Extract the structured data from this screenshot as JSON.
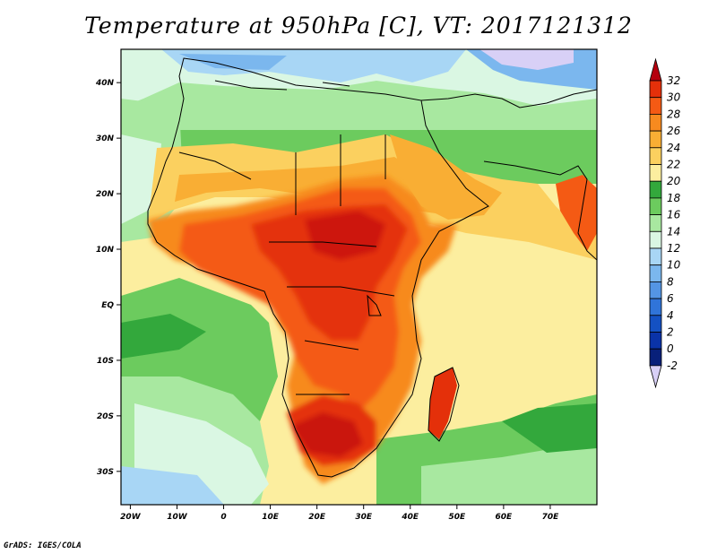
{
  "title": "Temperature at 950hPa [C], VT: 2017121312",
  "credit": "GrADS: IGES/COLA",
  "map": {
    "lat_ticks": [
      "40N",
      "30N",
      "20N",
      "10N",
      "EQ",
      "10S",
      "20S",
      "30S"
    ],
    "lon_ticks": [
      "20W",
      "10W",
      "0",
      "10E",
      "20E",
      "30E",
      "40E",
      "50E",
      "60E",
      "70E"
    ],
    "lat_values": [
      40,
      30,
      20,
      10,
      0,
      -10,
      -20,
      -30
    ],
    "lon_values": [
      -20,
      -10,
      0,
      10,
      20,
      30,
      40,
      50,
      60,
      70
    ],
    "lon_range": [
      -22,
      80
    ],
    "lat_range": [
      -36,
      46
    ]
  },
  "colorbar": {
    "labels": [
      "32",
      "30",
      "28",
      "26",
      "24",
      "22",
      "20",
      "18",
      "16",
      "14",
      "12",
      "10",
      "8",
      "6",
      "4",
      "2",
      "0",
      "-2"
    ],
    "colors": [
      "#b5000e",
      "#e4300a",
      "#f45a14",
      "#f78a1f",
      "#f9ae34",
      "#fbd05f",
      "#fcee9f",
      "#33a83c",
      "#6ccb5e",
      "#a8e8a0",
      "#daf7e3",
      "#a8d6f5",
      "#7bb7ee",
      "#5495e4",
      "#3074d9",
      "#1451c3",
      "#0a33a8",
      "#08207a",
      "#d8d0f6"
    ]
  }
}
